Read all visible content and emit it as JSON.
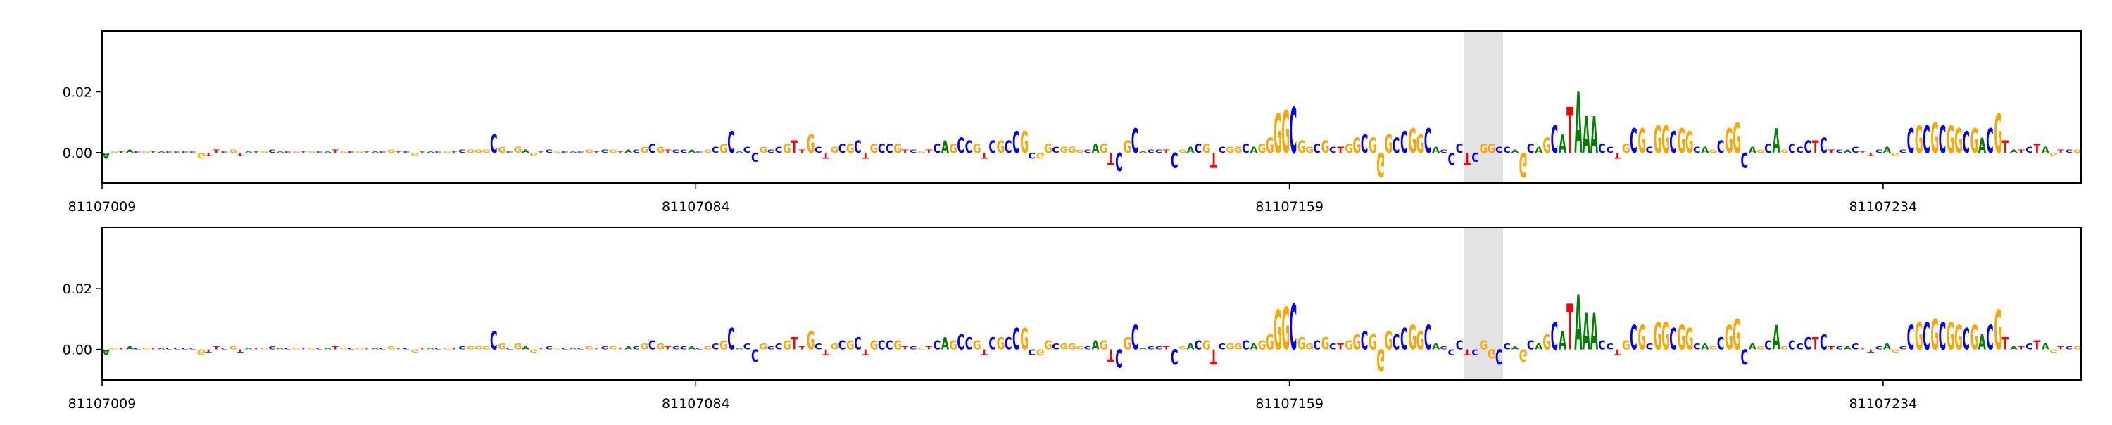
{
  "chart_data": [
    {
      "type": "logo",
      "xlim": [
        81107009,
        81107259
      ],
      "ylim": [
        -0.01,
        0.04
      ],
      "xticks": [
        81107009,
        81107084,
        81107159,
        81107234
      ],
      "yticks": [
        {
          "value": 0,
          "label": "0.00"
        },
        {
          "value": 0.02,
          "label": "0.02"
        }
      ],
      "highlight": [
        81107181,
        81107186
      ],
      "colors": {
        "A": "#008000",
        "C": "#0000ff",
        "G": "#ffa500",
        "T": "#ff0000"
      },
      "letters": "AGTACGTACCCCGTTCGTATGCACGTGCATGCGTACGTCGTACGTCGGGCGCGAGTCGCACGTCGTACGCGTCCACGCGCACCGCCGTTGCTGCGCTGCCGTCGTCAGCCGTCGCCGCGGCGGGCAGTCGCACCTCGACGTCGGCAGGGGCGGCGCTGGCGGGCCGGCACCCTCGGCCAGCAGCATAAACCTGCGCGGCGGCAGCGGCAGCAGCCCTCTCACTTCAGCCGCGCGGCGACGTATCTAGTCG",
      "values": [
        -0.002,
        0.0005,
        0.0005,
        0.001,
        0.0005,
        0.0005,
        0.0005,
        0.0005,
        0.0005,
        0.0005,
        0.0005,
        0.0005,
        -0.002,
        -0.001,
        0.001,
        0.0005,
        0.001,
        -0.001,
        0.0005,
        0.0005,
        0.0005,
        0.001,
        0.0005,
        0.0005,
        0.0005,
        0.0005,
        0.0005,
        0.0005,
        0.0005,
        0.001,
        0.0005,
        0.0005,
        0.0005,
        0.0005,
        0.0005,
        0.0005,
        0.001,
        0.0005,
        0.0005,
        -0.001,
        0.0005,
        0.0005,
        0.0005,
        0.0005,
        0.0005,
        0.001,
        0.001,
        0.001,
        0.001,
        0.006,
        0.002,
        0.0005,
        0.002,
        0.001,
        -0.001,
        0.0005,
        0.001,
        0.0005,
        0.0005,
        0.0005,
        0.0005,
        0.001,
        0.0005,
        0.001,
        0.001,
        0.0005,
        0.001,
        0.001,
        0.002,
        0.003,
        0.002,
        0.001,
        0.001,
        0.001,
        0.001,
        0.0005,
        0.001,
        0.002,
        0.003,
        0.007,
        0.0005,
        0.002,
        -0.003,
        0.002,
        0.001,
        0.002,
        0.003,
        0.004,
        0.001,
        0.006,
        0.002,
        -0.002,
        0.002,
        0.003,
        0.003,
        0.004,
        -0.002,
        0.003,
        0.003,
        0.003,
        0.003,
        0.001,
        0.001,
        0.0005,
        0.001,
        0.003,
        0.004,
        0.003,
        0.005,
        0.004,
        0.003,
        -0.002,
        0.004,
        0.004,
        0.004,
        0.007,
        0.007,
        -0.002,
        -0.002,
        0.003,
        0.002,
        0.002,
        0.002,
        0.001,
        0.001,
        0.003,
        0.003,
        -0.004,
        -0.006,
        0.004,
        0.008,
        0.0005,
        0.001,
        0.001,
        0.001,
        -0.005,
        0.001,
        0.002,
        0.003,
        0.003,
        -0.005,
        0.002,
        0.002,
        0.002,
        0.003,
        0.002,
        0.003,
        0.005,
        0.013,
        0.014,
        0.015,
        0.004,
        0.002,
        0.003,
        0.004,
        0.002,
        0.002,
        0.003,
        0.005,
        0.006,
        0.005,
        -0.008,
        0.006,
        0.005,
        0.007,
        0.008,
        0.006,
        0.008,
        0.002,
        0.001,
        -0.004,
        0.003,
        -0.004,
        -0.003,
        0.003,
        0.003,
        0.002,
        0.002,
        0.001,
        -0.008,
        0.003,
        0.002,
        0.005,
        0.009,
        0.006,
        0.015,
        0.02,
        0.012,
        0.012,
        0.003,
        0.002,
        -0.002,
        0.003,
        0.008,
        0.008,
        0.002,
        0.009,
        0.009,
        0.007,
        0.008,
        0.007,
        0.002,
        0.002,
        0.001,
        0.004,
        0.008,
        0.01,
        -0.005,
        0.002,
        0.001,
        0.003,
        0.008,
        0.001,
        0.003,
        0.002,
        0.004,
        0.004,
        0.005,
        0.001,
        0.001,
        0.001,
        0.002,
        0.0005,
        -0.001,
        0.001,
        0.002,
        -0.001,
        0.001,
        0.008,
        0.009,
        0.009,
        0.01,
        0.009,
        0.009,
        0.008,
        0.007,
        0.008,
        0.005,
        0.008,
        0.013,
        0.004,
        0.001,
        0.001,
        0.002,
        0.003,
        0.002,
        -0.001,
        0.001,
        0.001,
        0.001
      ]
    },
    {
      "type": "logo",
      "xlim": [
        81107009,
        81107259
      ],
      "ylim": [
        -0.01,
        0.04
      ],
      "xticks": [
        81107009,
        81107084,
        81107159,
        81107234
      ],
      "yticks": [
        {
          "value": 0,
          "label": "0.00"
        },
        {
          "value": 0.02,
          "label": "0.02"
        }
      ],
      "highlight": [
        81107181,
        81107186
      ],
      "colors": {
        "A": "#008000",
        "C": "#0000ff",
        "G": "#ffa500",
        "T": "#ff0000"
      },
      "letters": "AGTACGTACCCCGTTCGTATGCACGTGCATGCGTACGTCGTACGTCGGGCGCGAGTCGCACGTCGTACGCGTCCACGCGCACCGCCGTTGCTGCGCTGCCGTCGTCAGCCGTCGCCGCGGCGGGCAGTCGCACCTCGACGTCGGCAGGGGCGGCGCTGGCGGGCCGGCACCCTCGGCCAGCAGCATAAACCTGCGCGGCGGCAGCGGCAGCAGCCCTCTCACTTCAGCCGCGCGGCGACGTATCTAGTCG",
      "values": [
        -0.002,
        0.0005,
        0.0005,
        0.001,
        0.0005,
        0.0005,
        0.0005,
        0.0005,
        0.0005,
        0.0005,
        0.0005,
        0.0005,
        -0.002,
        -0.001,
        0.001,
        0.0005,
        0.001,
        -0.001,
        0.0005,
        0.0005,
        0.0005,
        0.001,
        0.0005,
        0.0005,
        0.0005,
        0.0005,
        0.0005,
        0.0005,
        0.0005,
        0.001,
        0.0005,
        0.0005,
        0.0005,
        0.0005,
        0.0005,
        0.0005,
        0.001,
        0.0005,
        0.0005,
        -0.001,
        0.0005,
        0.0005,
        0.0005,
        0.0005,
        0.0005,
        0.001,
        0.001,
        0.001,
        0.001,
        0.006,
        0.002,
        0.0005,
        0.002,
        0.001,
        -0.001,
        0.0005,
        0.001,
        0.0005,
        0.0005,
        0.0005,
        0.0005,
        0.001,
        0.0005,
        0.001,
        0.001,
        0.0005,
        0.001,
        0.001,
        0.002,
        0.003,
        0.002,
        0.001,
        0.001,
        0.001,
        0.001,
        0.0005,
        0.001,
        0.002,
        0.003,
        0.007,
        0.0005,
        0.002,
        -0.004,
        0.002,
        0.001,
        0.002,
        0.003,
        0.004,
        0.001,
        0.006,
        0.002,
        -0.002,
        0.002,
        0.003,
        0.003,
        0.004,
        -0.002,
        0.003,
        0.003,
        0.003,
        0.003,
        0.001,
        0.001,
        0.0005,
        0.001,
        0.003,
        0.004,
        0.003,
        0.005,
        0.004,
        0.003,
        -0.002,
        0.004,
        0.004,
        0.004,
        0.007,
        0.007,
        -0.002,
        -0.002,
        0.003,
        0.002,
        0.002,
        0.002,
        0.001,
        0.001,
        0.003,
        0.003,
        -0.004,
        -0.006,
        0.004,
        0.008,
        0.0005,
        0.001,
        0.001,
        0.001,
        -0.005,
        0.001,
        0.002,
        0.003,
        0.003,
        -0.005,
        0.002,
        0.002,
        0.002,
        0.003,
        0.002,
        0.003,
        0.005,
        0.013,
        0.014,
        0.015,
        0.004,
        0.002,
        0.003,
        0.004,
        0.002,
        0.002,
        0.003,
        0.005,
        0.006,
        0.005,
        -0.007,
        0.006,
        0.005,
        0.007,
        0.008,
        0.006,
        0.008,
        0.002,
        0.001,
        -0.002,
        0.003,
        -0.002,
        -0.002,
        0.003,
        -0.003,
        -0.005,
        0.002,
        0.001,
        -0.004,
        0.003,
        0.002,
        0.005,
        0.009,
        0.006,
        0.015,
        0.018,
        0.012,
        0.012,
        0.003,
        0.002,
        -0.002,
        0.003,
        0.008,
        0.008,
        0.002,
        0.009,
        0.009,
        0.007,
        0.008,
        0.007,
        0.002,
        0.002,
        0.001,
        0.004,
        0.008,
        0.01,
        -0.005,
        0.002,
        0.001,
        0.003,
        0.008,
        0.001,
        0.003,
        0.002,
        0.004,
        0.004,
        0.005,
        0.001,
        0.001,
        0.001,
        0.002,
        0.0005,
        -0.001,
        0.001,
        0.002,
        -0.001,
        0.001,
        0.008,
        0.009,
        0.009,
        0.01,
        0.009,
        0.009,
        0.008,
        0.007,
        0.008,
        0.005,
        0.008,
        0.013,
        0.004,
        0.001,
        0.001,
        0.002,
        0.003,
        0.002,
        -0.001,
        0.001,
        0.001,
        0.001
      ]
    }
  ]
}
